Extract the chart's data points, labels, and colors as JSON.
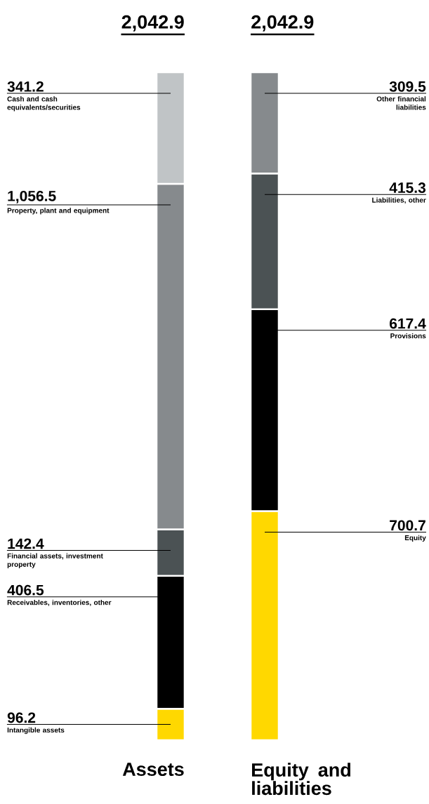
{
  "chart_data": {
    "type": "bar",
    "stacked": true,
    "categories": [
      "Assets",
      "Equity and liabilities"
    ],
    "ylim": [
      0,
      2042.9
    ],
    "totals": [
      "2,042.9",
      "2,042.9"
    ],
    "series": [
      {
        "name": "Intangible assets",
        "color": "#ffd800",
        "values": [
          96.2,
          null
        ],
        "value_labels": [
          "96.2",
          null
        ]
      },
      {
        "name": "Receivables, inventories, other",
        "color": "#000000",
        "values": [
          406.5,
          null
        ],
        "value_labels": [
          "406.5",
          null
        ]
      },
      {
        "name": "Financial assets, investment property",
        "color": "#4b5254",
        "values": [
          142.4,
          null
        ],
        "value_labels": [
          "142.4",
          null
        ]
      },
      {
        "name": "Property, plant and equipment",
        "color": "#868a8d",
        "values": [
          1056.5,
          null
        ],
        "value_labels": [
          "1,056.5",
          null
        ]
      },
      {
        "name": "Cash and cash equivalents/securities",
        "color": "#c0c4c6",
        "values": [
          341.2,
          null
        ],
        "value_labels": [
          "341.2",
          null
        ]
      },
      {
        "name": "Equity",
        "color": "#ffd800",
        "values": [
          null,
          700.7
        ],
        "value_labels": [
          null,
          "700.7"
        ]
      },
      {
        "name": "Provisions",
        "color": "#000000",
        "values": [
          null,
          617.4
        ],
        "value_labels": [
          null,
          "617.4"
        ]
      },
      {
        "name": "Liabilities, other",
        "color": "#4b5254",
        "values": [
          null,
          415.3
        ],
        "value_labels": [
          null,
          "415.3"
        ]
      },
      {
        "name": "Other financial liabilities",
        "color": "#868a8d",
        "values": [
          null,
          309.5
        ],
        "value_labels": [
          null,
          "309.5"
        ]
      }
    ]
  }
}
